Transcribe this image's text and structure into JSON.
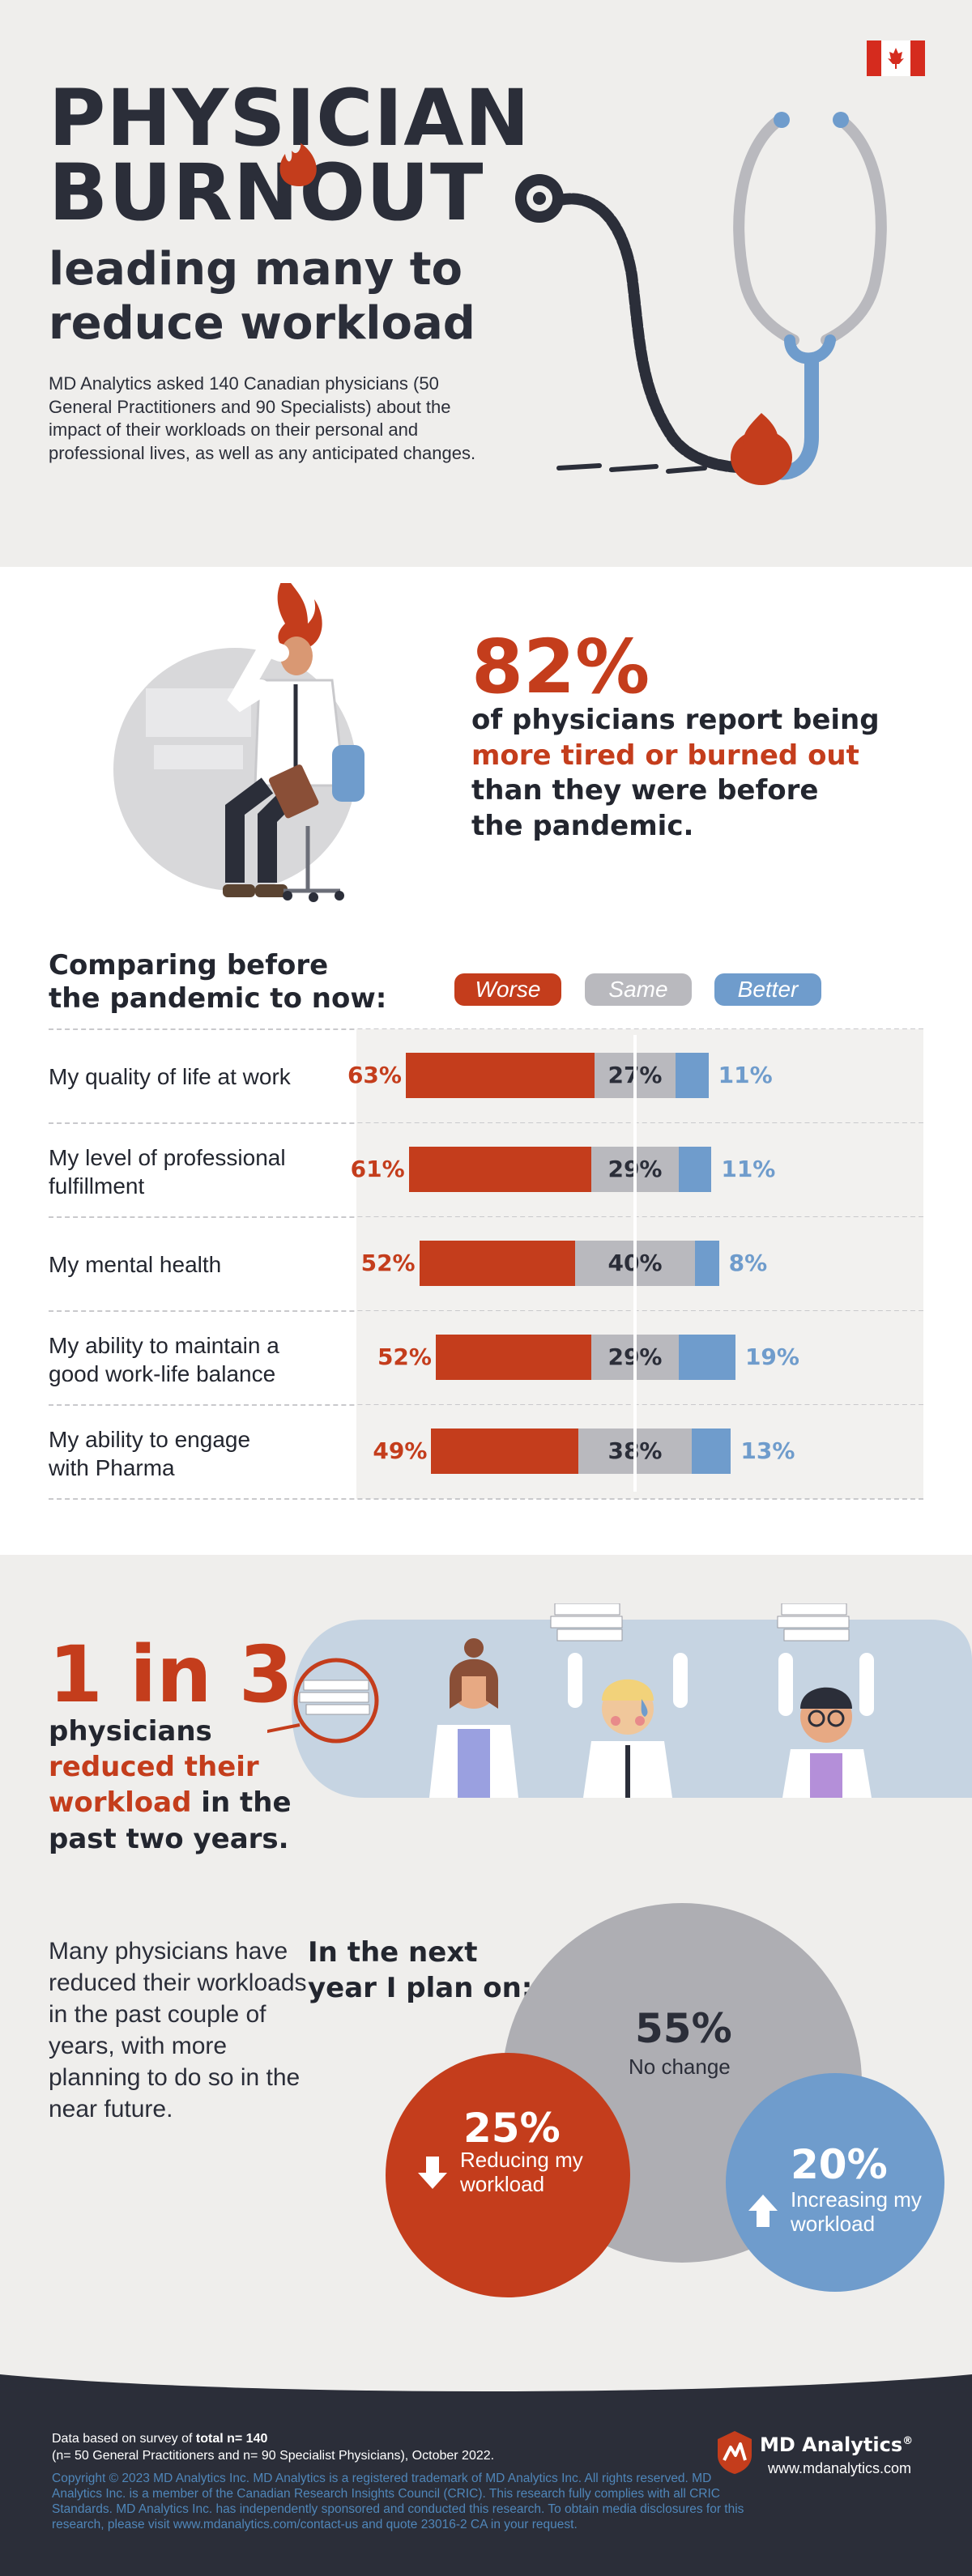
{
  "header": {
    "title_line1": "PHYSICIAN",
    "title_line2": "BURNOUT",
    "subtitle_line1": "leading many to",
    "subtitle_line2": "reduce workload",
    "intro": "MD Analytics asked 140 Canadian physicians (50 General Practitioners and 90 Specialists) about the impact of their workloads on their personal and professional lives, as well as any anticipated changes."
  },
  "headline_stat": {
    "value": "82%",
    "text_before": "of physicians report being",
    "text_accent": "more tired or burned out",
    "text_after1": "than they were before",
    "text_after2": "the pandemic."
  },
  "comparison": {
    "title_line1": "Comparing before",
    "title_line2": "the pandemic to now:",
    "legend": [
      "Worse",
      "Same",
      "Better"
    ]
  },
  "chart_data": {
    "type": "bar",
    "stacked": true,
    "categories": [
      "My quality of life at work",
      "My level of professional fulfillment",
      "My mental health",
      "My ability to maintain a good work-life balance",
      "My ability to engage with Pharma"
    ],
    "series": [
      {
        "name": "Worse",
        "values": [
          63,
          61,
          52,
          52,
          49
        ]
      },
      {
        "name": "Same",
        "values": [
          27,
          29,
          40,
          29,
          38
        ]
      },
      {
        "name": "Better",
        "values": [
          11,
          11,
          8,
          19,
          13
        ]
      }
    ],
    "units": "%",
    "colors": {
      "Worse": "#c43d1c",
      "Same": "#b9b9be",
      "Better": "#6f9ccc"
    }
  },
  "rows": [
    {
      "label_l1": "My quality of life at work",
      "label_l2": "",
      "worse": "63%",
      "same": "27%",
      "better": "11%"
    },
    {
      "label_l1": "My level of professional",
      "label_l2": "fulfillment",
      "worse": "61%",
      "same": "29%",
      "better": "11%"
    },
    {
      "label_l1": "My mental health",
      "label_l2": "",
      "worse": "52%",
      "same": "40%",
      "better": "8%"
    },
    {
      "label_l1": "My ability to maintain a",
      "label_l2": "good work-life balance",
      "worse": "52%",
      "same": "29%",
      "better": "19%"
    },
    {
      "label_l1": "My ability to engage",
      "label_l2": "with Pharma",
      "worse": "49%",
      "same": "38%",
      "better": "13%"
    }
  ],
  "one_in_three": {
    "value": "1 in 3",
    "line1": "physicians",
    "accent1": "reduced their",
    "accent2": "workload",
    "line3": " in the",
    "line4": "past two years."
  },
  "plans": {
    "text": "Many physicians have reduced their workloads in the past couple of years, with more planning to do so in the near future.",
    "title_line1": "In the next",
    "title_line2": "year I plan on:",
    "no_change": {
      "value": "55%",
      "label": "No change"
    },
    "reducing": {
      "value": "25%",
      "label_l1": "Reducing my",
      "label_l2": "workload"
    },
    "increasing": {
      "value": "20%",
      "label_l1": "Increasing my",
      "label_l2": "workload"
    }
  },
  "footer": {
    "survey_prefix": "Data based on survey of ",
    "survey_total": "total n= 140",
    "survey_detail": "(n= 50 General Practitioners and n= 90 Specialist Physicians), October 2022.",
    "legal": "Copyright © 2023 MD Analytics Inc. MD Analytics is a registered trademark of MD Analytics Inc. All rights reserved. MD Analytics Inc. is a member of the Canadian Research Insights Council (CRIC). This research fully complies with all CRIC Standards. MD Analytics Inc. has independently sponsored and conducted this research. To obtain media disclosures for this research, please visit www.mdanalytics.com/contact-us and quote 23016-2 CA in your request.",
    "brand": "MD Analytics",
    "brand_mark": "®",
    "url": "www.mdanalytics.com"
  },
  "colors": {
    "accent": "#c43d1c",
    "dark": "#2b2e39",
    "gray": "#b9b9be",
    "blue": "#6f9ccc",
    "flag_red": "#d52b1e"
  }
}
